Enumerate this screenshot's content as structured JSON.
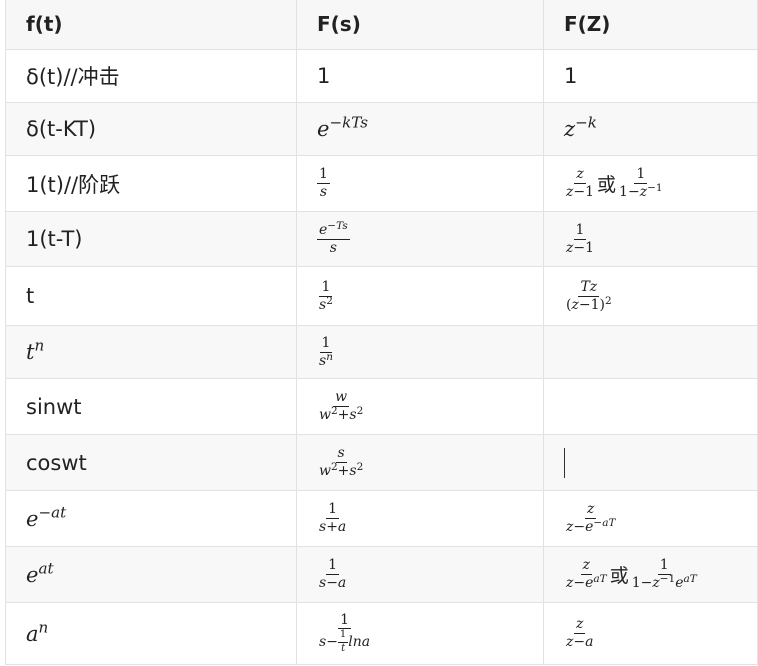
{
  "headers": [
    "f(t)",
    "F(s)",
    "F(Z)"
  ],
  "rows": [
    {
      "f": "δ(t)//冲击",
      "s": "1",
      "z": "1"
    },
    {
      "f": "δ(t-KT)"
    },
    {
      "f": "1(t)//阶跃",
      "z_or": "或"
    },
    {
      "f": "1(t-T)"
    },
    {
      "f": "t"
    },
    {},
    {
      "f": "sinwt"
    },
    {
      "f": "coswt"
    },
    {},
    {
      "z_or": "或"
    },
    {}
  ]
}
